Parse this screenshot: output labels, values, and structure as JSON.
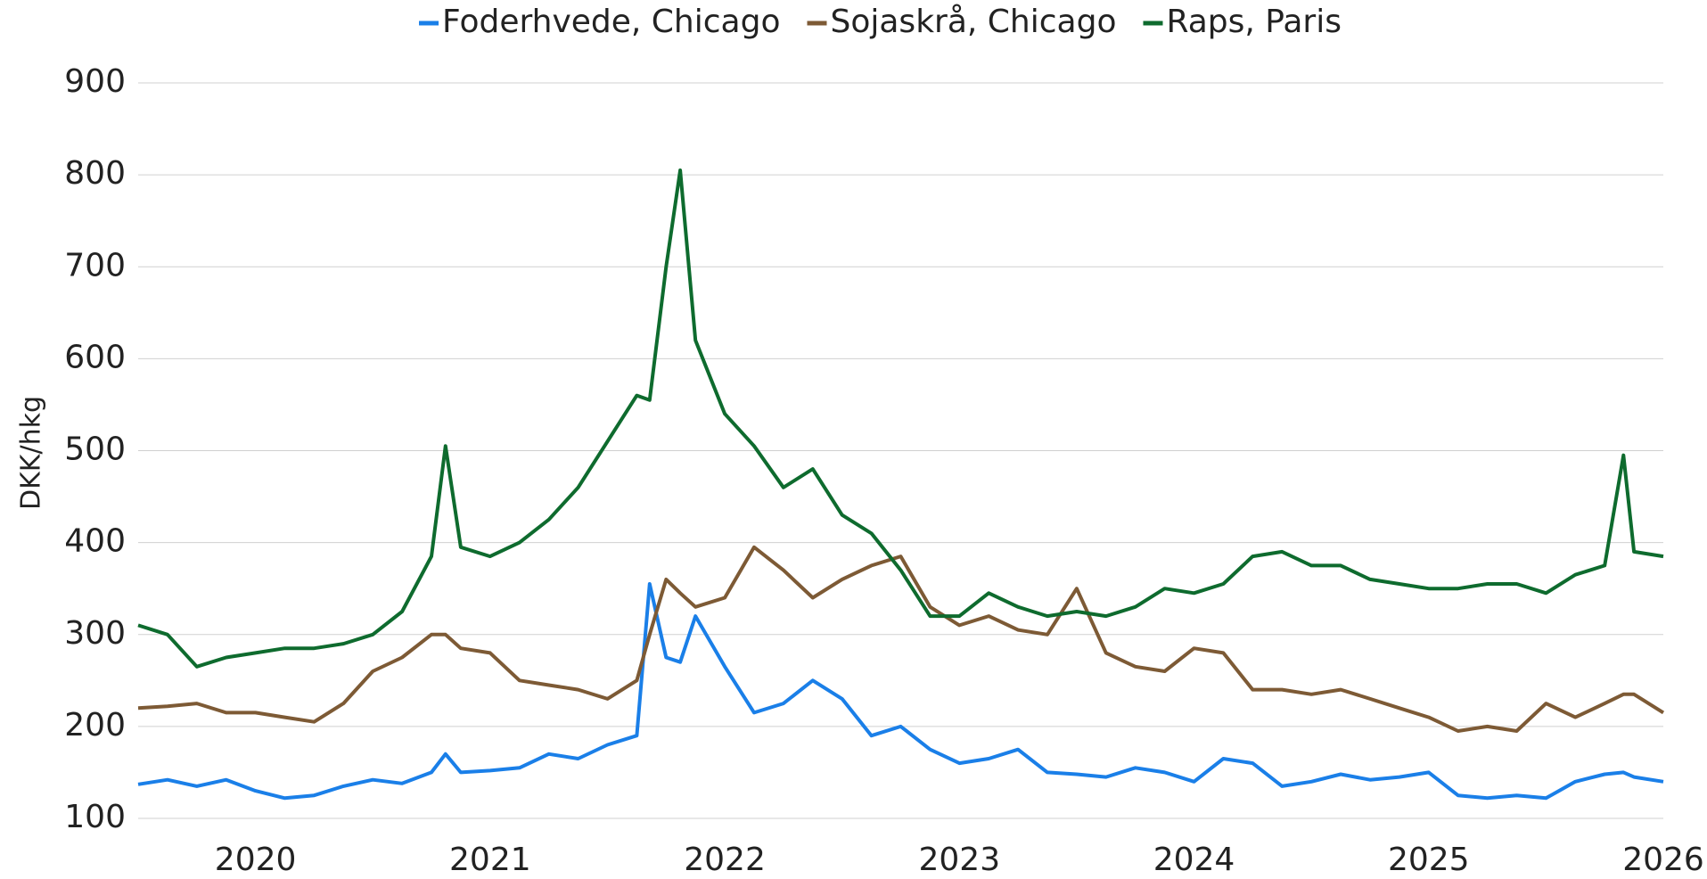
{
  "chart_data": {
    "type": "line",
    "ylabel": "DKK/hkg",
    "x": [
      2019.5,
      2019.625,
      2019.75,
      2019.875,
      2020,
      2020.125,
      2020.25,
      2020.375,
      2020.5,
      2020.625,
      2020.75,
      2020.81,
      2020.875,
      2021,
      2021.125,
      2021.25,
      2021.375,
      2021.5,
      2021.625,
      2021.68,
      2021.75,
      2021.81,
      2021.875,
      2022,
      2022.125,
      2022.25,
      2022.375,
      2022.5,
      2022.625,
      2022.75,
      2022.875,
      2023,
      2023.125,
      2023.25,
      2023.375,
      2023.5,
      2023.625,
      2023.75,
      2023.875,
      2024,
      2024.125,
      2024.25,
      2024.375,
      2024.5,
      2024.625,
      2024.75,
      2024.875,
      2025,
      2025.125,
      2025.25,
      2025.375,
      2025.5,
      2025.625,
      2025.75,
      2025.83,
      2025.875,
      2026
    ],
    "series": [
      {
        "name": "Foderhvede, Chicago",
        "color": "#1a7fe8",
        "values": [
          137,
          142,
          135,
          142,
          130,
          122,
          125,
          135,
          142,
          138,
          150,
          170,
          150,
          152,
          155,
          170,
          165,
          180,
          190,
          355,
          275,
          270,
          320,
          265,
          215,
          225,
          250,
          230,
          190,
          200,
          175,
          160,
          165,
          175,
          150,
          148,
          145,
          155,
          150,
          140,
          165,
          160,
          135,
          140,
          148,
          142,
          145,
          150,
          125,
          122,
          125,
          122,
          140,
          148,
          150,
          145,
          140
        ]
      },
      {
        "name": "Sojaskrå, Chicago",
        "color": "#7d5a35",
        "values": [
          220,
          222,
          225,
          215,
          215,
          210,
          205,
          225,
          260,
          275,
          300,
          300,
          285,
          280,
          250,
          245,
          240,
          230,
          250,
          300,
          360,
          345,
          330,
          340,
          395,
          370,
          340,
          360,
          375,
          385,
          330,
          310,
          320,
          305,
          300,
          350,
          280,
          265,
          260,
          285,
          280,
          240,
          240,
          235,
          240,
          230,
          220,
          210,
          195,
          200,
          195,
          225,
          210,
          225,
          235,
          235,
          215
        ]
      },
      {
        "name": "Raps, Paris",
        "color": "#0e6b2e",
        "values": [
          310,
          300,
          265,
          275,
          280,
          285,
          285,
          290,
          300,
          325,
          385,
          505,
          395,
          385,
          400,
          425,
          460,
          510,
          560,
          555,
          700,
          805,
          620,
          540,
          505,
          460,
          480,
          430,
          410,
          370,
          320,
          320,
          345,
          330,
          320,
          325,
          320,
          330,
          350,
          345,
          355,
          385,
          390,
          375,
          375,
          360,
          355,
          350,
          350,
          355,
          355,
          345,
          365,
          375,
          495,
          390,
          385
        ]
      }
    ],
    "xlim": [
      2019.5,
      2026
    ],
    "xticks": [
      2020,
      2021,
      2022,
      2023,
      2024,
      2025,
      2026
    ],
    "ylim": [
      100,
      900
    ],
    "yticks": [
      100,
      200,
      300,
      400,
      500,
      600,
      700,
      800,
      900
    ],
    "grid": true,
    "legend": "top"
  }
}
